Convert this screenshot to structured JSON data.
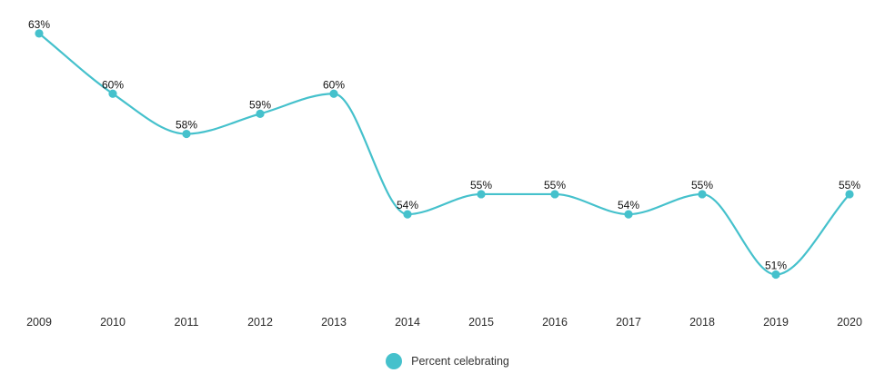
{
  "chart_data": {
    "type": "line",
    "categories": [
      "2009",
      "2010",
      "2011",
      "2012",
      "2013",
      "2014",
      "2015",
      "2016",
      "2017",
      "2018",
      "2019",
      "2020"
    ],
    "series": [
      {
        "name": "Percent celebrating",
        "values": [
          63,
          60,
          58,
          59,
          60,
          54,
          55,
          55,
          54,
          55,
          51,
          55
        ],
        "labels": [
          "63%",
          "60%",
          "58%",
          "59%",
          "60%",
          "54%",
          "55%",
          "55%",
          "54%",
          "55%",
          "51%",
          "55%"
        ]
      }
    ],
    "ylim": [
      50.3,
      63.4
    ],
    "grid": false,
    "legend_position": "bottom-center",
    "color": "#45c1cc"
  }
}
